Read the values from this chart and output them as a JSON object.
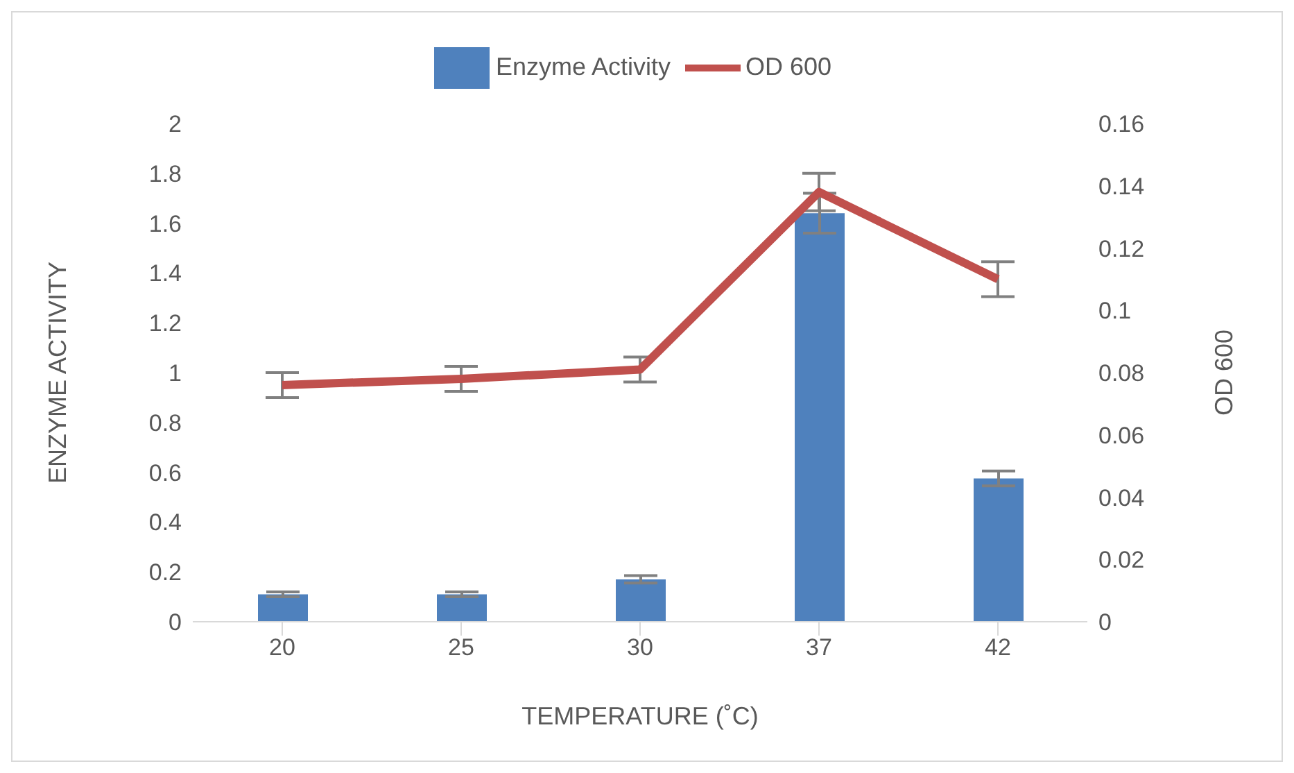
{
  "chart_data": {
    "type": "bar",
    "xlabel": "TEMPERATURE (˚C)",
    "ylabel": "ENZYME ACTIVITY",
    "y2label": "OD 600",
    "categories": [
      "20",
      "25",
      "30",
      "37",
      "42"
    ],
    "series": [
      {
        "name": "Enzyme Activity",
        "color": "#4f81bd",
        "values": [
          0.11,
          0.11,
          0.17,
          1.64,
          0.575
        ],
        "errors": [
          0.01,
          0.01,
          0.015,
          0.08,
          0.03
        ]
      },
      {
        "name": "OD 600",
        "type": "line",
        "axis": "y2",
        "color": "#c0504d",
        "values": [
          0.076,
          0.078,
          0.081,
          0.138,
          0.11
        ],
        "errors": [
          0.004,
          0.004,
          0.004,
          0.006,
          0.0056
        ]
      }
    ],
    "ylim": [
      0,
      2
    ],
    "yticks": [
      0,
      0.2,
      0.4,
      0.6,
      0.8,
      1,
      1.2,
      1.4,
      1.6,
      1.8,
      2
    ],
    "y2lim": [
      0,
      0.16
    ],
    "y2ticks": [
      0,
      0.02,
      0.04,
      0.06,
      0.08,
      0.1,
      0.12,
      0.14,
      0.16
    ],
    "grid": false,
    "legend": "top",
    "marker": "none",
    "line_style": "solid"
  }
}
